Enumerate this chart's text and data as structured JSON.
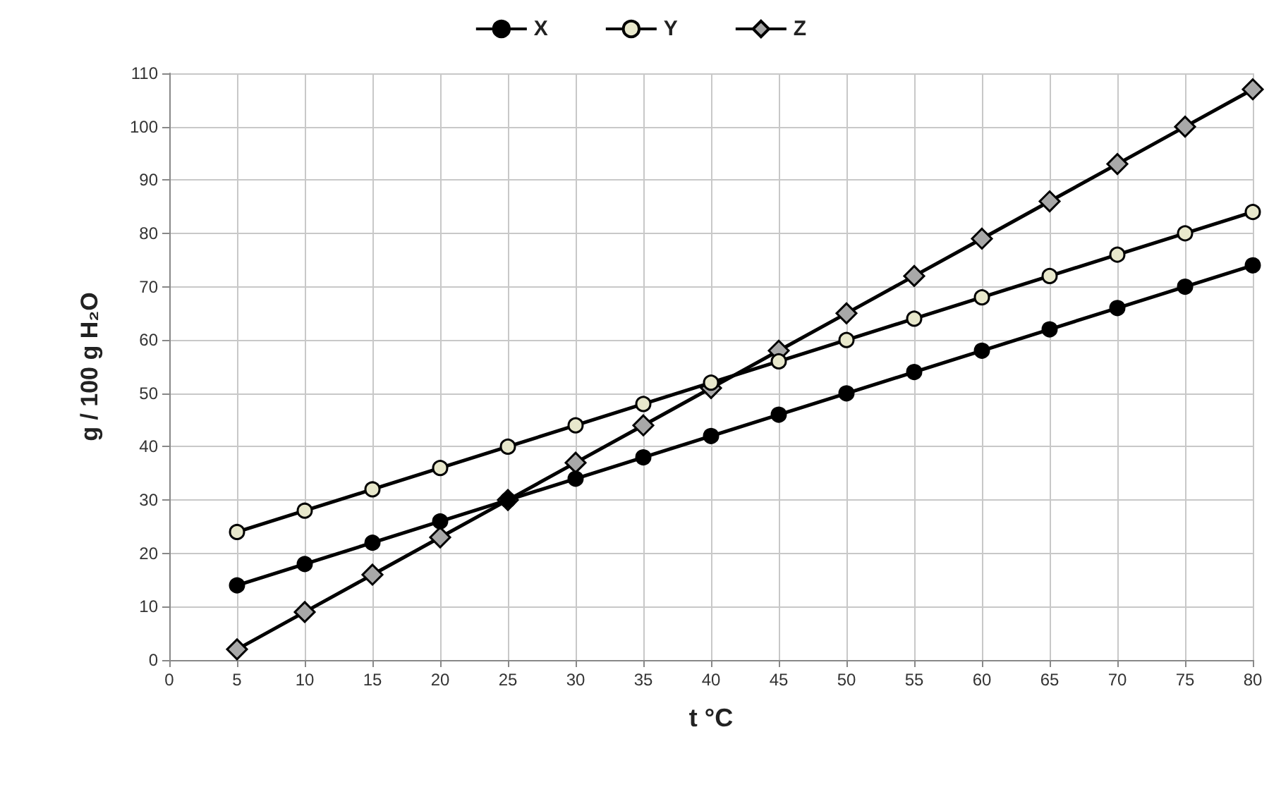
{
  "chart_data": {
    "type": "line",
    "xlabel": "t °C",
    "ylabel": "g / 100 g H₂O",
    "x": [
      5,
      10,
      15,
      20,
      25,
      30,
      35,
      40,
      45,
      50,
      55,
      60,
      65,
      70,
      75,
      80
    ],
    "series": [
      {
        "name": "X",
        "color": "#000000",
        "marker": "circle",
        "values": [
          14,
          18,
          22,
          26,
          30,
          34,
          38,
          42,
          46,
          50,
          54,
          58,
          62,
          66,
          70,
          74
        ]
      },
      {
        "name": "Y",
        "color": "#e8e8cc",
        "marker": "circle",
        "values": [
          24,
          28,
          32,
          36,
          40,
          44,
          48,
          52,
          56,
          60,
          64,
          68,
          72,
          76,
          80,
          84
        ]
      },
      {
        "name": "Z",
        "color": "#a8a8a8",
        "marker": "diamond",
        "values": [
          2,
          9,
          16,
          23,
          30,
          37,
          44,
          51,
          58,
          65,
          72,
          79,
          86,
          93,
          100,
          107
        ]
      }
    ],
    "xlim": [
      0,
      80
    ],
    "xticks": [
      0,
      5,
      10,
      15,
      20,
      25,
      30,
      35,
      40,
      45,
      50,
      55,
      60,
      65,
      70,
      75,
      80
    ],
    "ylim": [
      0,
      110
    ],
    "yticks": [
      0,
      10,
      20,
      30,
      40,
      50,
      60,
      70,
      80,
      90,
      100,
      110
    ],
    "grid": true,
    "legend": "top",
    "line_style": "solid"
  }
}
